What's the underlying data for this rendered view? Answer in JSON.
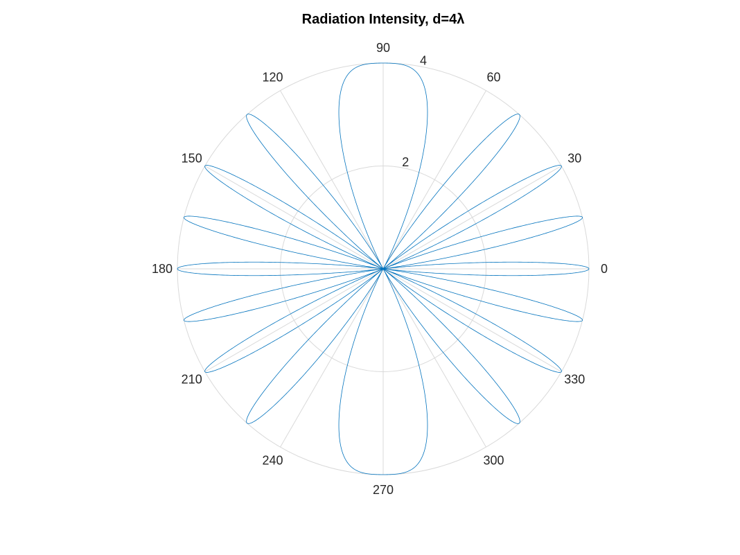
{
  "chart_data": {
    "type": "polar-line",
    "title": "Radiation Intensity, d=4λ",
    "angle_ticks": [
      0,
      30,
      60,
      90,
      120,
      150,
      180,
      210,
      240,
      270,
      300,
      330
    ],
    "angle_tick_labels": [
      "0",
      "30",
      "60",
      "90",
      "120",
      "150",
      "180",
      "210",
      "240",
      "270",
      "300",
      "330"
    ],
    "radial_ticks": [
      2,
      4
    ],
    "radial_tick_labels": [
      "2",
      "4"
    ],
    "rlim": [
      0,
      4
    ],
    "grid": true,
    "series": [
      {
        "formula": "r = 4 * cos(4*pi*sin(theta))^2",
        "amplitude": 4,
        "d_over_lambda": 4,
        "theta_range_deg": [
          0,
          360
        ],
        "color": "#0072BD",
        "lobe_peak_angles_deg": [
          0,
          14.5,
          30,
          48.6,
          90,
          131.4,
          150,
          165.5,
          180,
          194.5,
          210,
          228.6,
          270,
          311.4,
          330,
          345.5
        ],
        "peak_value": 4
      }
    ],
    "colors": {
      "grid": "#d9d9d9",
      "line": "#0072BD",
      "text": "#262626"
    }
  }
}
